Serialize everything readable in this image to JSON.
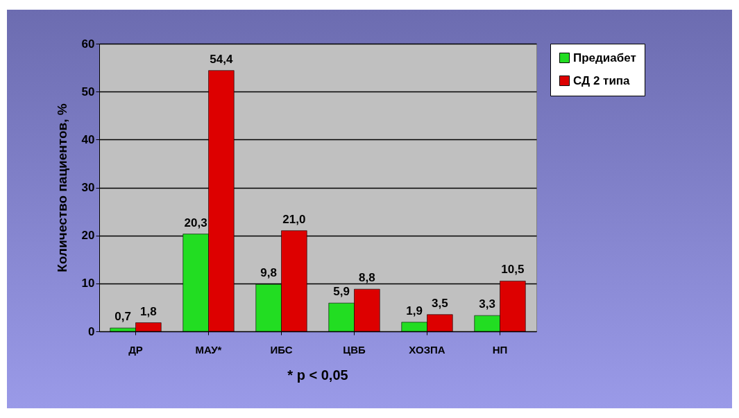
{
  "chart_data": {
    "type": "bar",
    "ylabel": "Количество пациентов, %",
    "annotations": [
      "* p < 0,05"
    ],
    "categories": [
      "ДР",
      "МАУ*",
      "ИБС",
      "ЦВБ",
      "ХОЗПА",
      "НП"
    ],
    "series": [
      {
        "name": "Предиабет",
        "color": "#22dd22",
        "values": [
          0.7,
          20.3,
          9.8,
          5.9,
          1.9,
          3.3
        ],
        "value_labels": [
          "0,7",
          "20,3",
          "9,8",
          "5,9",
          "1,9",
          "3,3"
        ]
      },
      {
        "name": "СД 2 типа",
        "color": "#dd0000",
        "values": [
          1.8,
          54.4,
          21.0,
          8.8,
          3.5,
          10.5
        ],
        "value_labels": [
          "1,8",
          "54,4",
          "21,0",
          "8,8",
          "3,5",
          "10,5"
        ]
      }
    ],
    "ylim": [
      0,
      60
    ],
    "yticks": [
      0,
      10,
      20,
      30,
      40,
      50,
      60
    ],
    "grid": "y",
    "legend": "right"
  }
}
